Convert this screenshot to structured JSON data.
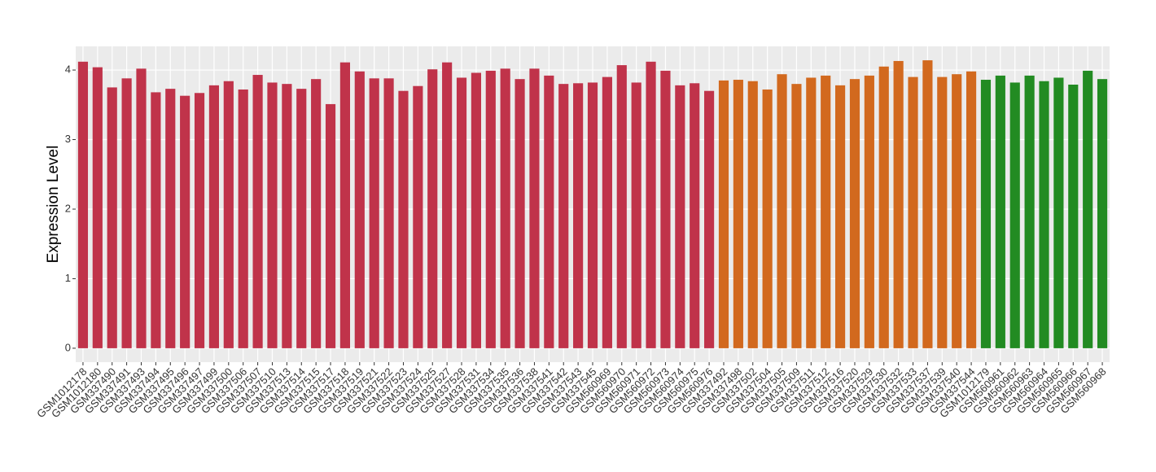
{
  "chart_data": {
    "type": "bar",
    "y_label": "Expression Level",
    "categories": [
      "GSM1012178",
      "GSM1012180",
      "GSM337490",
      "GSM337491",
      "GSM337493",
      "GSM337494",
      "GSM337495",
      "GSM337496",
      "GSM337497",
      "GSM337499",
      "GSM337500",
      "GSM337506",
      "GSM337507",
      "GSM337510",
      "GSM337513",
      "GSM337514",
      "GSM337515",
      "GSM337517",
      "GSM337518",
      "GSM337519",
      "GSM337521",
      "GSM337522",
      "GSM337523",
      "GSM337524",
      "GSM337525",
      "GSM337527",
      "GSM337528",
      "GSM337531",
      "GSM337534",
      "GSM337535",
      "GSM337536",
      "GSM337538",
      "GSM337541",
      "GSM337542",
      "GSM337543",
      "GSM337545",
      "GSM560969",
      "GSM560970",
      "GSM560971",
      "GSM560972",
      "GSM560973",
      "GSM560974",
      "GSM560975",
      "GSM560976",
      "GSM337492",
      "GSM337498",
      "GSM337502",
      "GSM337504",
      "GSM337505",
      "GSM337509",
      "GSM337511",
      "GSM337512",
      "GSM337516",
      "GSM337520",
      "GSM337529",
      "GSM337530",
      "GSM337532",
      "GSM337533",
      "GSM337537",
      "GSM337539",
      "GSM337540",
      "GSM337544",
      "GSM1012179",
      "GSM560961",
      "GSM560962",
      "GSM560963",
      "GSM560964",
      "GSM560965",
      "GSM560966",
      "GSM560967",
      "GSM560968"
    ],
    "values": [
      4.12,
      4.04,
      3.75,
      3.88,
      4.02,
      3.68,
      3.73,
      3.63,
      3.67,
      3.78,
      3.84,
      3.72,
      3.93,
      3.82,
      3.8,
      3.73,
      3.87,
      3.51,
      4.11,
      3.98,
      3.88,
      3.88,
      3.7,
      3.77,
      4.01,
      4.11,
      3.89,
      3.96,
      3.99,
      4.02,
      3.87,
      4.02,
      3.92,
      3.8,
      3.81,
      3.82,
      3.9,
      4.07,
      3.82,
      4.12,
      3.99,
      3.78,
      3.81,
      3.7,
      3.85,
      3.86,
      3.84,
      3.72,
      3.94,
      3.8,
      3.89,
      3.92,
      3.78,
      3.87,
      3.92,
      4.05,
      4.13,
      3.9,
      4.14,
      3.9,
      3.94,
      3.98,
      3.86,
      3.92,
      3.82,
      3.92,
      3.84,
      3.89,
      3.79,
      3.99,
      3.87
    ],
    "colors": [
      "#c0334a",
      "#c0334a",
      "#c0334a",
      "#c0334a",
      "#c0334a",
      "#c0334a",
      "#c0334a",
      "#c0334a",
      "#c0334a",
      "#c0334a",
      "#c0334a",
      "#c0334a",
      "#c0334a",
      "#c0334a",
      "#c0334a",
      "#c0334a",
      "#c0334a",
      "#c0334a",
      "#c0334a",
      "#c0334a",
      "#c0334a",
      "#c0334a",
      "#c0334a",
      "#c0334a",
      "#c0334a",
      "#c0334a",
      "#c0334a",
      "#c0334a",
      "#c0334a",
      "#c0334a",
      "#c0334a",
      "#c0334a",
      "#c0334a",
      "#c0334a",
      "#c0334a",
      "#c0334a",
      "#c0334a",
      "#c0334a",
      "#c0334a",
      "#c0334a",
      "#c0334a",
      "#c0334a",
      "#c0334a",
      "#c0334a",
      "#d2691e",
      "#d2691e",
      "#d2691e",
      "#d2691e",
      "#d2691e",
      "#d2691e",
      "#d2691e",
      "#d2691e",
      "#d2691e",
      "#d2691e",
      "#d2691e",
      "#d2691e",
      "#d2691e",
      "#d2691e",
      "#d2691e",
      "#d2691e",
      "#d2691e",
      "#d2691e",
      "#228b22",
      "#228b22",
      "#228b22",
      "#228b22",
      "#228b22",
      "#228b22",
      "#228b22",
      "#228b22",
      "#228b22"
    ],
    "ylim": [
      -0.2,
      4.34
    ],
    "yticks": [
      0,
      1,
      2,
      3,
      4
    ],
    "grid": true
  }
}
